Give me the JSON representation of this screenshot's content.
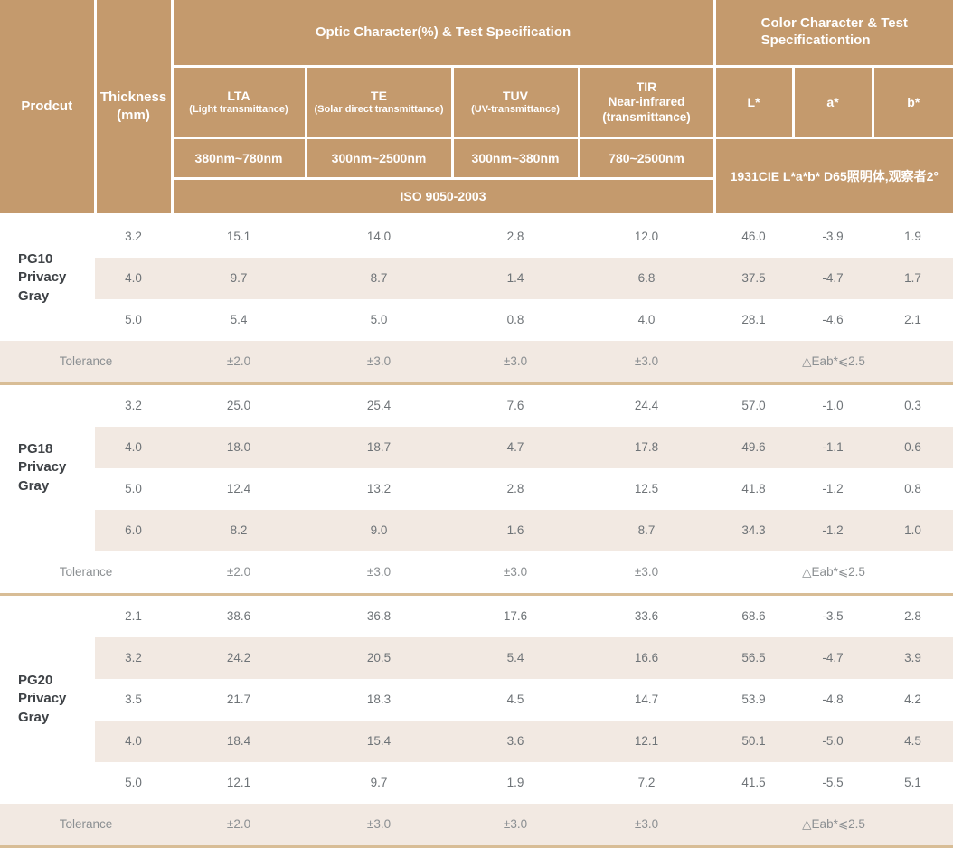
{
  "theme": {
    "header_bg": "#c49a6d",
    "header_text": "#ffffff",
    "stripe_bg": "#f2e9e2",
    "separator": "#d8bd96",
    "data_text": "#6e7377",
    "product_text": "#3e4246",
    "tolerance_text": "#8b8f92"
  },
  "table": {
    "header": {
      "product": "Prodcut",
      "thickness": "Thickness\n(mm)",
      "optic_group": "Optic Character(%) & Test Specification",
      "color_group": "Color Character & Test\nSpecificationtion",
      "columns": [
        {
          "abbr": "LTA",
          "sub": "(Light transmittance)",
          "range": "380nm~780nm"
        },
        {
          "abbr": "TE",
          "sub": "(Solar direct transmittance)",
          "range": "300nm~2500nm"
        },
        {
          "abbr": "TUV",
          "sub": "(UV-transmittance)",
          "range": "300nm~380nm"
        },
        {
          "abbr": "TIR",
          "sub": "Near-infrared\n(transmittance)",
          "range": "780~2500nm"
        }
      ],
      "color_columns": [
        "L*",
        "a*",
        "b*"
      ],
      "iso_standard": "ISO 9050-2003",
      "color_standard": "1931CIE L*a*b*  D65照明体,观察者2°"
    },
    "sections": [
      {
        "product": "PG10\nPrivacy Gray",
        "rows": [
          {
            "thickness": "3.2",
            "values": [
              "15.1",
              "14.0",
              "2.8",
              "12.0",
              "46.0",
              "-3.9",
              "1.9"
            ]
          },
          {
            "thickness": "4.0",
            "values": [
              "9.7",
              "8.7",
              "1.4",
              "6.8",
              "37.5",
              "-4.7",
              "1.7"
            ]
          },
          {
            "thickness": "5.0",
            "values": [
              "5.4",
              "5.0",
              "0.8",
              "4.0",
              "28.1",
              "-4.6",
              "2.1"
            ]
          }
        ],
        "tolerance": {
          "label": "Tolerance",
          "values": [
            "±2.0",
            "±3.0",
            "±3.0",
            "±3.0"
          ],
          "color_tolerance": "△Eab*⩽2.5"
        }
      },
      {
        "product": "PG18\nPrivacy Gray",
        "rows": [
          {
            "thickness": "3.2",
            "values": [
              "25.0",
              "25.4",
              "7.6",
              "24.4",
              "57.0",
              "-1.0",
              "0.3"
            ]
          },
          {
            "thickness": "4.0",
            "values": [
              "18.0",
              "18.7",
              "4.7",
              "17.8",
              "49.6",
              "-1.1",
              "0.6"
            ]
          },
          {
            "thickness": "5.0",
            "values": [
              "12.4",
              "13.2",
              "2.8",
              "12.5",
              "41.8",
              "-1.2",
              "0.8"
            ]
          },
          {
            "thickness": "6.0",
            "values": [
              "8.2",
              "9.0",
              "1.6",
              "8.7",
              "34.3",
              "-1.2",
              "1.0"
            ]
          }
        ],
        "tolerance": {
          "label": "Tolerance",
          "values": [
            "±2.0",
            "±3.0",
            "±3.0",
            "±3.0"
          ],
          "color_tolerance": "△Eab*⩽2.5"
        }
      },
      {
        "product": "PG20\nPrivacy Gray",
        "rows": [
          {
            "thickness": "2.1",
            "values": [
              "38.6",
              "36.8",
              "17.6",
              "33.6",
              "68.6",
              "-3.5",
              "2.8"
            ]
          },
          {
            "thickness": "3.2",
            "values": [
              "24.2",
              "20.5",
              "5.4",
              "16.6",
              "56.5",
              "-4.7",
              "3.9"
            ]
          },
          {
            "thickness": "3.5",
            "values": [
              "21.7",
              "18.3",
              "4.5",
              "14.7",
              "53.9",
              "-4.8",
              "4.2"
            ]
          },
          {
            "thickness": "4.0",
            "values": [
              "18.4",
              "15.4",
              "3.6",
              "12.1",
              "50.1",
              "-5.0",
              "4.5"
            ]
          },
          {
            "thickness": "5.0",
            "values": [
              "12.1",
              "9.7",
              "1.9",
              "7.2",
              "41.5",
              "-5.5",
              "5.1"
            ]
          }
        ],
        "tolerance": {
          "label": "Tolerance",
          "values": [
            "±2.0",
            "±3.0",
            "±3.0",
            "±3.0"
          ],
          "color_tolerance": "△Eab*⩽2.5"
        }
      }
    ]
  }
}
